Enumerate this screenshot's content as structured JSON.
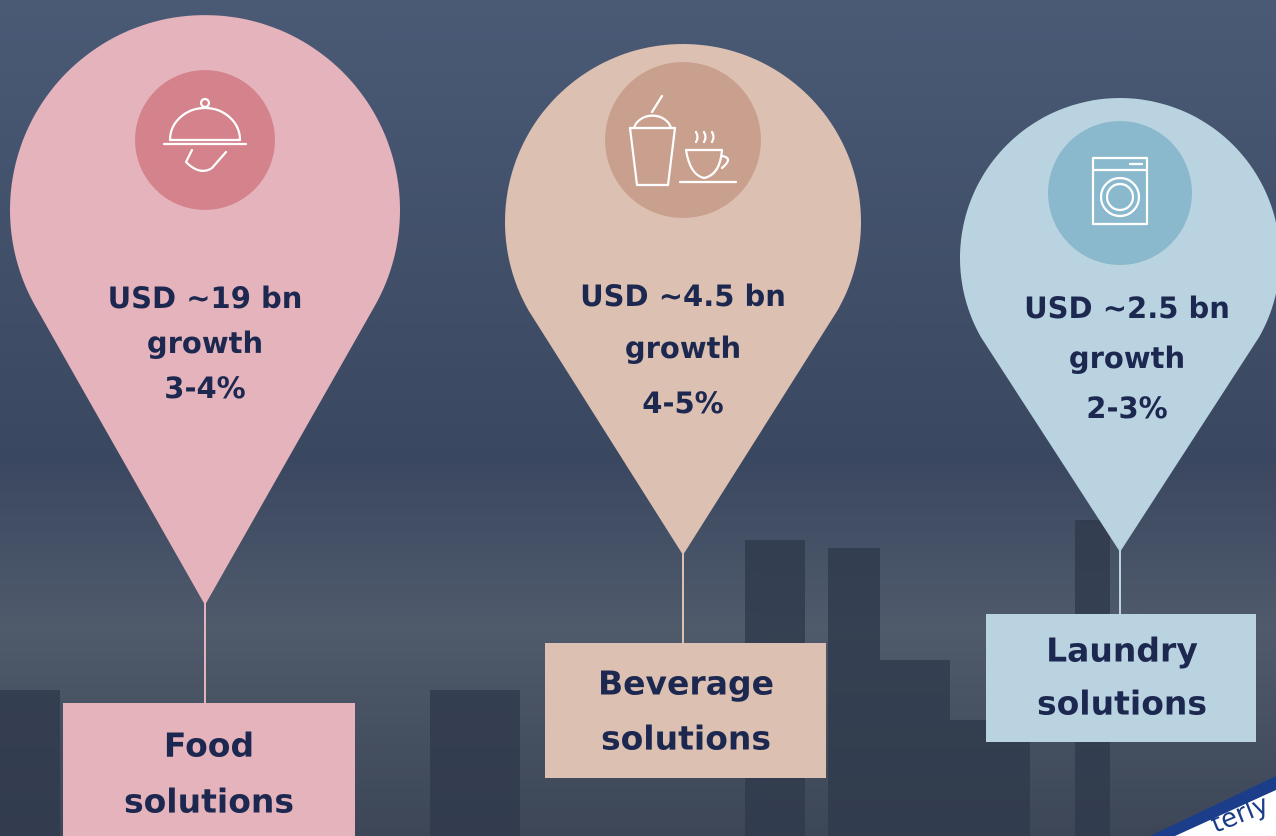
{
  "pins": [
    {
      "amount": "USD ~19 bn",
      "growth": "growth",
      "range": "3-4%",
      "label": [
        "Food",
        "solutions"
      ]
    },
    {
      "amount": "USD ~4.5 bn",
      "growth": "growth",
      "range": "4-5%",
      "label": [
        "Beverage",
        "solutions"
      ]
    },
    {
      "amount": "USD ~2.5 bn",
      "growth": "growth",
      "range": "2-3%",
      "label": [
        "Laundry",
        "solutions"
      ]
    }
  ],
  "corner_text": "terly"
}
